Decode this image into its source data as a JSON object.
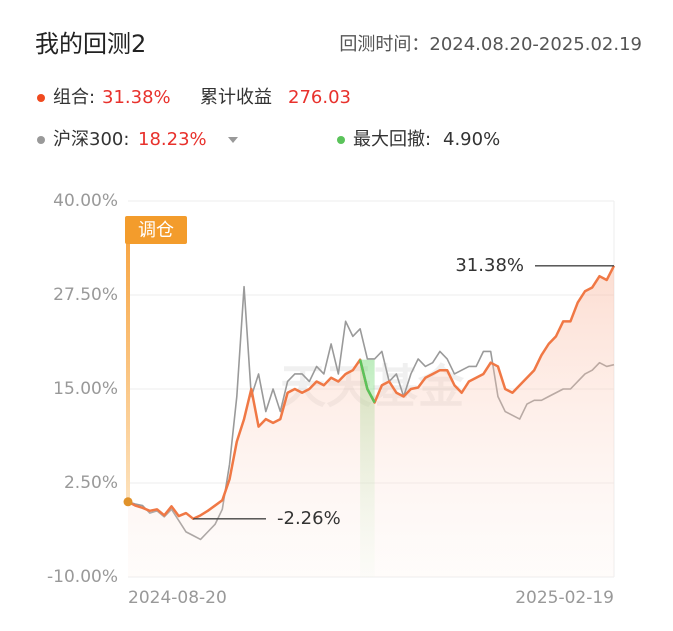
{
  "header": {
    "title": "我的回测2",
    "period": "回测时间：2024.08.20-2025.02.19"
  },
  "summary": {
    "cum_label": "累计收益",
    "cum_value": "276.03",
    "portfolio_return": "31.38%",
    "index_return": "18.23%",
    "drawdown_label": "最大回撤:",
    "drawdown": "4.90%"
  },
  "chart_data": {
    "type": "line",
    "categories": [
      "2024-08-20",
      null,
      null,
      null,
      null,
      null,
      null,
      null,
      null,
      null,
      null,
      null,
      null,
      null,
      null,
      null,
      null,
      null,
      null,
      null,
      null,
      null,
      null,
      null,
      null,
      null,
      null,
      null,
      null,
      null,
      null,
      null,
      null,
      null,
      null,
      null,
      null,
      null,
      null,
      null,
      null,
      null,
      null,
      null,
      null,
      null,
      null,
      null,
      null,
      null,
      null,
      null,
      null,
      null,
      null,
      null,
      null,
      null,
      null,
      null,
      null,
      null,
      null,
      null,
      null,
      null,
      null,
      "2025-02-19"
    ],
    "series": [
      {
        "name": "组合:",
        "color": "#f07845",
        "values": [
          0,
          -0.5,
          -0.8,
          -1.2,
          -1.0,
          -1.8,
          -0.6,
          -1.9,
          -1.5,
          -2.26,
          -1.8,
          -1.2,
          -0.5,
          0.2,
          3,
          8,
          11,
          15,
          10,
          11,
          10.5,
          11,
          14.5,
          15,
          14.5,
          15,
          16,
          15.5,
          16.5,
          16,
          17,
          17.5,
          18.9,
          15,
          13.2,
          15.5,
          16,
          14.5,
          14,
          15,
          15.2,
          16.5,
          17,
          17.5,
          17.5,
          15.5,
          14.5,
          16,
          16.5,
          17,
          18.5,
          18,
          15,
          14.5,
          15.5,
          16.5,
          17.5,
          19.5,
          21,
          22,
          24,
          24,
          26.5,
          28,
          28.5,
          30,
          29.5,
          31.38
        ]
      },
      {
        "name": "沪深300:",
        "color": "#9a9a9a",
        "values": [
          0,
          -0.3,
          -0.5,
          -1.5,
          -1.2,
          -2,
          -1,
          -2.5,
          -4,
          -4.5,
          -5,
          -4,
          -3,
          -1,
          5,
          14,
          28.6,
          14,
          17,
          12,
          15,
          12,
          16,
          17,
          17,
          16,
          18,
          17,
          21,
          17,
          24,
          22,
          23,
          19,
          19,
          20,
          16,
          17,
          14,
          17,
          19,
          18,
          18.5,
          20,
          19,
          17,
          17.5,
          18,
          18,
          20,
          20,
          14,
          12,
          11.5,
          11,
          13,
          13.5,
          13.5,
          14,
          14.5,
          15,
          15,
          16,
          17,
          17.5,
          18.5,
          18,
          18.23
        ]
      }
    ],
    "drawdown_color": "#5ac35a",
    "ylim": [
      -10,
      40
    ],
    "yticks": [
      {
        "value": -10,
        "label": "-10.00%"
      },
      {
        "value": 2.5,
        "label": "2.50%"
      },
      {
        "value": 15,
        "label": "15.00%"
      },
      {
        "value": 27.5,
        "label": "27.50%"
      },
      {
        "value": 40,
        "label": "40.00%"
      }
    ],
    "grid": true,
    "annotations": {
      "max": "31.38%",
      "min": "-2.26%",
      "rebalance": "调仓",
      "watermark": "天天基金"
    }
  }
}
